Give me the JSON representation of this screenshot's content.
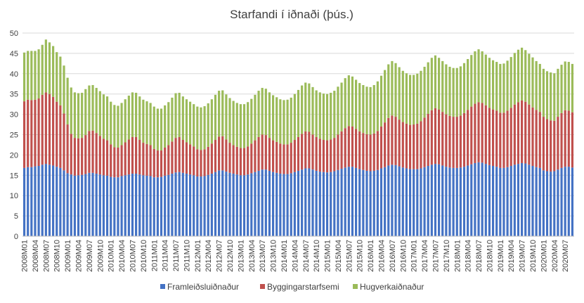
{
  "chart_data": {
    "type": "bar",
    "stacked": true,
    "title": "Starfandi í iðnaði (þús.)",
    "xlabel": "",
    "ylabel": "",
    "ylim": [
      0,
      50
    ],
    "y_ticks": [
      0,
      5,
      10,
      15,
      20,
      25,
      30,
      35,
      40,
      45,
      50
    ],
    "grid": true,
    "legend_position": "bottom",
    "categories": [
      "2008M01",
      "2008M02",
      "2008M03",
      "2008M04",
      "2008M05",
      "2008M06",
      "2008M07",
      "2008M08",
      "2008M09",
      "2008M10",
      "2008M11",
      "2008M12",
      "2009M01",
      "2009M02",
      "2009M03",
      "2009M04",
      "2009M05",
      "2009M06",
      "2009M07",
      "2009M08",
      "2009M09",
      "2009M10",
      "2009M11",
      "2009M12",
      "2010M01",
      "2010M02",
      "2010M03",
      "2010M04",
      "2010M05",
      "2010M06",
      "2010M07",
      "2010M08",
      "2010M09",
      "2010M10",
      "2010M11",
      "2010M12",
      "2011M01",
      "2011M02",
      "2011M03",
      "2011M04",
      "2011M05",
      "2011M06",
      "2011M07",
      "2011M08",
      "2011M09",
      "2011M10",
      "2011M11",
      "2011M12",
      "2012M01",
      "2012M02",
      "2012M03",
      "2012M04",
      "2012M05",
      "2012M06",
      "2012M07",
      "2012M08",
      "2012M09",
      "2012M10",
      "2012M11",
      "2012M12",
      "2013M01",
      "2013M02",
      "2013M03",
      "2013M04",
      "2013M05",
      "2013M06",
      "2013M07",
      "2013M08",
      "2013M09",
      "2013M10",
      "2013M11",
      "2013M12",
      "2014M01",
      "2014M02",
      "2014M03",
      "2014M04",
      "2014M05",
      "2014M06",
      "2014M07",
      "2014M08",
      "2014M09",
      "2014M10",
      "2014M11",
      "2014M12",
      "2015M01",
      "2015M02",
      "2015M03",
      "2015M04",
      "2015M05",
      "2015M06",
      "2015M07",
      "2015M08",
      "2015M09",
      "2015M10",
      "2015M11",
      "2015M12",
      "2016M01",
      "2016M02",
      "2016M03",
      "2016M04",
      "2016M05",
      "2016M06",
      "2016M07",
      "2016M08",
      "2016M09",
      "2016M10",
      "2016M11",
      "2016M12",
      "2017M01",
      "2017M02",
      "2017M03",
      "2017M04",
      "2017M05",
      "2017M06",
      "2017M07",
      "2017M08",
      "2017M09",
      "2017M10",
      "2017M11",
      "2017M12",
      "2018M01",
      "2018M02",
      "2018M03",
      "2018M04",
      "2018M05",
      "2018M06",
      "2018M07",
      "2018M08",
      "2018M09",
      "2018M10",
      "2018M11",
      "2018M12",
      "2019M01",
      "2019M02",
      "2019M03",
      "2019M04",
      "2019M05",
      "2019M06",
      "2019M07",
      "2019M08",
      "2019M09",
      "2019M10",
      "2019M11",
      "2019M12",
      "2020M01",
      "2020M02",
      "2020M03",
      "2020M04",
      "2020M05",
      "2020M06",
      "2020M07",
      "2020M08",
      "2020M09"
    ],
    "label_every": 3,
    "series": [
      {
        "name": "Framleiðsluiðnaður",
        "color": "#4472C4",
        "values": [
          16.8,
          17.0,
          17.0,
          17.2,
          17.3,
          17.6,
          17.8,
          17.6,
          17.4,
          17.1,
          16.8,
          16.2,
          15.5,
          15.2,
          14.9,
          15.0,
          15.1,
          15.3,
          15.6,
          15.6,
          15.4,
          15.2,
          15.0,
          14.9,
          14.6,
          14.5,
          14.5,
          14.8,
          15.0,
          15.2,
          15.4,
          15.4,
          15.2,
          15.0,
          14.9,
          14.8,
          14.5,
          14.5,
          14.6,
          14.9,
          15.1,
          15.4,
          15.7,
          15.8,
          15.6,
          15.4,
          15.2,
          15.0,
          14.7,
          14.7,
          14.8,
          15.1,
          15.4,
          15.8,
          16.2,
          16.2,
          15.9,
          15.6,
          15.4,
          15.2,
          15.0,
          15.0,
          15.2,
          15.5,
          15.8,
          16.1,
          16.4,
          16.4,
          16.1,
          15.8,
          15.6,
          15.4,
          15.3,
          15.3,
          15.5,
          15.8,
          16.1,
          16.4,
          16.7,
          16.7,
          16.4,
          16.1,
          15.9,
          15.8,
          15.7,
          15.8,
          16.0,
          16.3,
          16.6,
          16.9,
          17.1,
          17.1,
          16.8,
          16.5,
          16.3,
          16.1,
          16.0,
          16.1,
          16.3,
          16.7,
          17.0,
          17.4,
          17.6,
          17.5,
          17.2,
          16.9,
          16.7,
          16.5,
          16.5,
          16.5,
          16.7,
          17.0,
          17.3,
          17.6,
          17.8,
          17.7,
          17.4,
          17.1,
          16.9,
          16.8,
          16.8,
          16.9,
          17.1,
          17.4,
          17.7,
          18.0,
          18.2,
          18.1,
          17.8,
          17.5,
          17.3,
          17.1,
          16.8,
          16.8,
          17.0,
          17.3,
          17.6,
          17.8,
          18.0,
          17.9,
          17.6,
          17.3,
          17.0,
          16.8,
          16.2,
          16.0,
          15.9,
          16.0,
          16.4,
          16.8,
          17.1,
          17.1,
          16.9
        ]
      },
      {
        "name": "Byggingarstarfsemi",
        "color": "#C0504D",
        "values": [
          16.4,
          16.6,
          16.5,
          16.4,
          16.6,
          17.2,
          17.6,
          17.4,
          16.9,
          16.0,
          15.4,
          14.0,
          12.0,
          10.0,
          9.3,
          9.1,
          9.1,
          9.6,
          10.3,
          10.4,
          10.0,
          9.5,
          9.0,
          8.7,
          8.0,
          7.4,
          7.3,
          7.6,
          8.1,
          8.6,
          9.0,
          9.0,
          8.5,
          8.0,
          7.8,
          7.6,
          7.0,
          6.6,
          6.5,
          6.9,
          7.3,
          7.9,
          8.5,
          8.6,
          8.1,
          7.7,
          7.4,
          7.1,
          6.7,
          6.5,
          6.6,
          6.9,
          7.4,
          7.9,
          8.3,
          8.4,
          7.9,
          7.4,
          7.0,
          6.8,
          6.7,
          6.7,
          6.9,
          7.3,
          7.8,
          8.3,
          8.6,
          8.5,
          8.1,
          7.8,
          7.6,
          7.4,
          7.3,
          7.3,
          7.5,
          7.9,
          8.3,
          8.8,
          9.1,
          9.0,
          8.6,
          8.3,
          8.1,
          7.9,
          7.9,
          8.0,
          8.2,
          8.7,
          9.2,
          9.7,
          10.0,
          9.9,
          9.6,
          9.3,
          9.1,
          9.0,
          9.0,
          9.2,
          9.6,
          10.3,
          11.0,
          11.7,
          12.1,
          11.9,
          11.5,
          11.2,
          11.0,
          10.9,
          11.0,
          11.2,
          11.6,
          12.2,
          12.8,
          13.4,
          13.7,
          13.5,
          13.2,
          12.9,
          12.7,
          12.6,
          12.6,
          12.8,
          13.2,
          13.7,
          14.2,
          14.6,
          14.8,
          14.7,
          14.4,
          14.1,
          13.9,
          13.8,
          13.6,
          13.6,
          13.9,
          14.3,
          14.8,
          15.2,
          15.4,
          15.2,
          14.8,
          14.4,
          14.1,
          13.8,
          13.2,
          12.8,
          12.6,
          12.4,
          13.0,
          13.5,
          13.9,
          13.8,
          13.6
        ]
      },
      {
        "name": "Hugverkaiðnaður",
        "color": "#9BBB59",
        "values": [
          12.0,
          12.0,
          12.1,
          12.0,
          12.1,
          12.3,
          13.0,
          12.7,
          12.5,
          12.2,
          12.0,
          11.8,
          11.5,
          11.4,
          11.2,
          11.1,
          11.1,
          11.3,
          11.2,
          11.2,
          11.1,
          11.0,
          10.9,
          10.8,
          10.5,
          10.4,
          10.3,
          10.4,
          10.6,
          10.8,
          11.0,
          10.9,
          10.7,
          10.6,
          10.5,
          10.4,
          10.4,
          10.3,
          10.3,
          10.4,
          10.6,
          10.8,
          11.0,
          10.9,
          10.7,
          10.6,
          10.5,
          10.4,
          10.5,
          10.5,
          10.6,
          10.7,
          10.9,
          11.1,
          11.3,
          11.3,
          11.1,
          11.0,
          10.9,
          10.8,
          10.8,
          10.8,
          10.9,
          11.0,
          11.2,
          11.4,
          11.5,
          11.4,
          11.2,
          11.1,
          11.0,
          10.9,
          10.9,
          11.0,
          11.1,
          11.3,
          11.6,
          11.9,
          12.0,
          11.9,
          11.7,
          11.5,
          11.4,
          11.4,
          11.4,
          11.5,
          11.6,
          11.8,
          12.0,
          12.3,
          12.5,
          12.3,
          12.1,
          11.9,
          11.8,
          11.7,
          11.7,
          11.9,
          12.2,
          12.5,
          12.9,
          13.2,
          13.4,
          13.2,
          12.9,
          12.6,
          12.4,
          12.3,
          12.2,
          12.3,
          12.4,
          12.5,
          12.7,
          12.9,
          13.0,
          12.7,
          12.5,
          12.3,
          12.1,
          12.0,
          12.0,
          12.1,
          12.3,
          12.5,
          12.7,
          12.9,
          13.0,
          12.7,
          12.5,
          12.3,
          12.1,
          12.0,
          12.0,
          12.1,
          12.3,
          12.5,
          12.7,
          12.9,
          13.0,
          12.7,
          12.5,
          12.3,
          12.0,
          11.8,
          11.8,
          11.8,
          11.8,
          11.7,
          11.8,
          11.9,
          12.0,
          12.0,
          11.9
        ]
      }
    ]
  }
}
